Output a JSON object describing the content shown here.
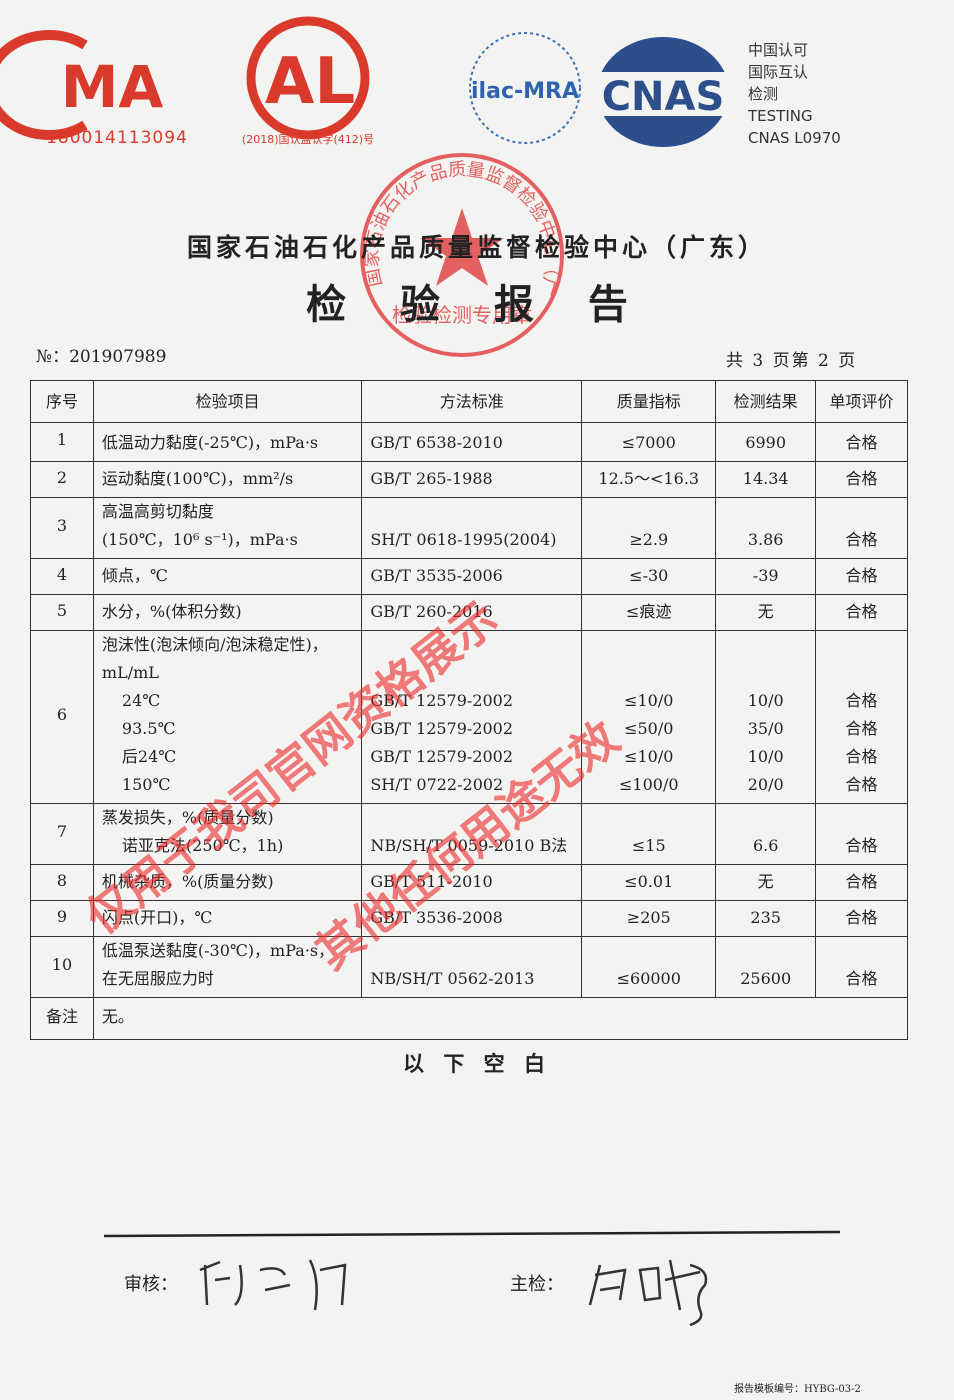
{
  "logos": {
    "cma": {
      "mark": "MA",
      "code": "180014113094"
    },
    "cal": {
      "mark": "AL",
      "code": "(2018)国认监认字(412)号"
    },
    "ilac": {
      "mark": "ilac-MRA"
    },
    "cnas": {
      "mark": "CNAS",
      "lines": [
        "中国认可",
        "国际互认",
        "检测",
        "TESTING",
        "CNAS L0970"
      ]
    }
  },
  "stamp": {
    "ring": "国家石油石化产品质量监督检验中心（广东）",
    "center": "检验检测专用章"
  },
  "header": {
    "org": "国家石油石化产品质量监督检验中心（广东）",
    "title": "检 验 报 告",
    "number": "№：201907989",
    "page": "共 3 页第 2 页"
  },
  "table": {
    "columns": [
      "序号",
      "检验项目",
      "方法标准",
      "质量指标",
      "检测结果",
      "单项评价"
    ],
    "rows": [
      {
        "no": "1",
        "item": [
          "低温动力黏度(-25℃)，mPa·s"
        ],
        "method": [
          "GB/T 6538-2010"
        ],
        "limit": [
          "≤7000"
        ],
        "result": [
          "6990"
        ],
        "verdict": [
          "合格"
        ]
      },
      {
        "no": "2",
        "item": [
          "运动黏度(100℃)，mm²/s"
        ],
        "method": [
          "GB/T 265-1988"
        ],
        "limit": [
          "12.5～<16.3"
        ],
        "result": [
          "14.34"
        ],
        "verdict": [
          "合格"
        ]
      },
      {
        "no": "3",
        "item": [
          "高温高剪切黏度",
          "(150℃，10⁶ s⁻¹)，mPa·s"
        ],
        "method": [
          "SH/T 0618-1995(2004)"
        ],
        "limit": [
          "≥2.9"
        ],
        "result": [
          "3.86"
        ],
        "verdict": [
          "合格"
        ]
      },
      {
        "no": "4",
        "item": [
          "倾点，℃"
        ],
        "method": [
          "GB/T 3535-2006"
        ],
        "limit": [
          "≤-30"
        ],
        "result": [
          "-39"
        ],
        "verdict": [
          "合格"
        ]
      },
      {
        "no": "5",
        "item": [
          "水分，%(体积分数)"
        ],
        "method": [
          "GB/T 260-2016"
        ],
        "limit": [
          "≤痕迹"
        ],
        "result": [
          "无"
        ],
        "verdict": [
          "合格"
        ]
      },
      {
        "no": "6",
        "item": [
          "泡沫性(泡沫倾向/泡沫稳定性)，mL/mL",
          "24℃",
          "93.5℃",
          "后24℃",
          "150℃"
        ],
        "method": [
          "GB/T 12579-2002",
          "GB/T 12579-2002",
          "GB/T 12579-2002",
          "SH/T 0722-2002"
        ],
        "limit": [
          "≤10/0",
          "≤50/0",
          "≤10/0",
          "≤100/0"
        ],
        "result": [
          "10/0",
          "35/0",
          "10/0",
          "20/0"
        ],
        "verdict": [
          "合格",
          "合格",
          "合格",
          "合格"
        ]
      },
      {
        "no": "7",
        "item": [
          "蒸发损失，%(质量分数)",
          "诺亚克法(250℃，1h)"
        ],
        "method": [
          "NB/SH/T 0059-2010 B法"
        ],
        "limit": [
          "≤15"
        ],
        "result": [
          "6.6"
        ],
        "verdict": [
          "合格"
        ]
      },
      {
        "no": "8",
        "item": [
          "机械杂质，%(质量分数)"
        ],
        "method": [
          "GB/T 511-2010"
        ],
        "limit": [
          "≤0.01"
        ],
        "result": [
          "无"
        ],
        "verdict": [
          "合格"
        ]
      },
      {
        "no": "9",
        "item": [
          "闪点(开口)，℃"
        ],
        "method": [
          "GB/T 3536-2008"
        ],
        "limit": [
          "≥205"
        ],
        "result": [
          "235"
        ],
        "verdict": [
          "合格"
        ]
      },
      {
        "no": "10",
        "item": [
          "低温泵送黏度(-30℃)，mPa·s，",
          "在无屈服应力时"
        ],
        "method": [
          "NB/SH/T 0562-2013"
        ],
        "limit": [
          "≤60000"
        ],
        "result": [
          "25600"
        ],
        "verdict": [
          "合格"
        ]
      }
    ],
    "remark": {
      "label": "备注",
      "text": "无。"
    }
  },
  "blank": "以 下 空 白",
  "watermark": [
    "仅用于我司官网资格展示",
    "其他任何用途无效"
  ],
  "signatures": {
    "review": "审核：",
    "inspector": "主检："
  },
  "footer": "报告模板编号：HYBG-03-2"
}
